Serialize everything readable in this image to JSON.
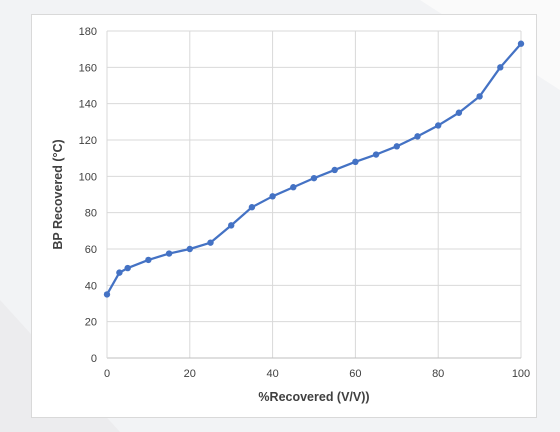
{
  "chart_data": {
    "type": "line",
    "title": "",
    "xlabel": "%Recovered (V/V))",
    "ylabel": "BP Recovered (°C)",
    "xlim": [
      0,
      100
    ],
    "ylim": [
      0,
      180
    ],
    "x_ticks": [
      "0",
      "20",
      "40",
      "60",
      "80",
      "100"
    ],
    "y_ticks": [
      "0",
      "20",
      "40",
      "60",
      "80",
      "100",
      "120",
      "140",
      "160",
      "180"
    ],
    "grid": true,
    "legend": "none",
    "series": [
      {
        "color": "#4472c4",
        "x": [
          0,
          3,
          5,
          10,
          15,
          20,
          25,
          30,
          35,
          40,
          45,
          50,
          55,
          60,
          65,
          70,
          75,
          80,
          85,
          90,
          95,
          100
        ],
        "y": [
          35,
          47,
          49.5,
          54,
          57.5,
          60,
          63.5,
          73,
          83,
          89,
          94,
          99,
          103.5,
          108,
          112,
          116.5,
          122,
          128,
          135,
          144,
          160,
          173
        ]
      }
    ]
  }
}
